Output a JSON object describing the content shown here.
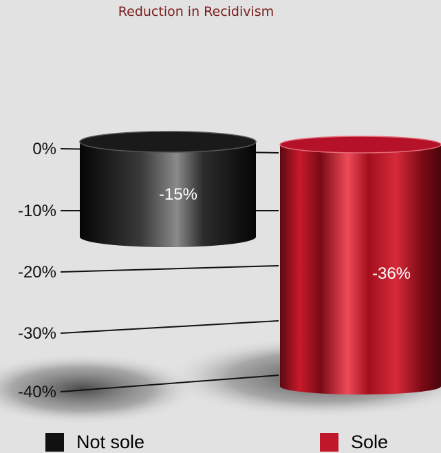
{
  "chart_data": {
    "type": "bar",
    "title": "Reduction in Recidivism",
    "categories": [
      "Not sole",
      "Sole"
    ],
    "values": [
      -15,
      -36
    ],
    "data_labels": [
      "-15%",
      "-36%"
    ],
    "yticks": [
      "0%",
      "-10%",
      "-20%",
      "-30%",
      "-40%"
    ],
    "ytick_values": [
      0,
      -10,
      -20,
      -30,
      -40
    ],
    "ylim": [
      -40,
      0
    ],
    "grid": true,
    "legend": {
      "position": "bottom",
      "items": [
        {
          "label": "Not sole",
          "color": "#111111"
        },
        {
          "label": "Sole",
          "color": "#c0182a"
        }
      ]
    },
    "colors": [
      "#111111",
      "#c0182a"
    ]
  }
}
